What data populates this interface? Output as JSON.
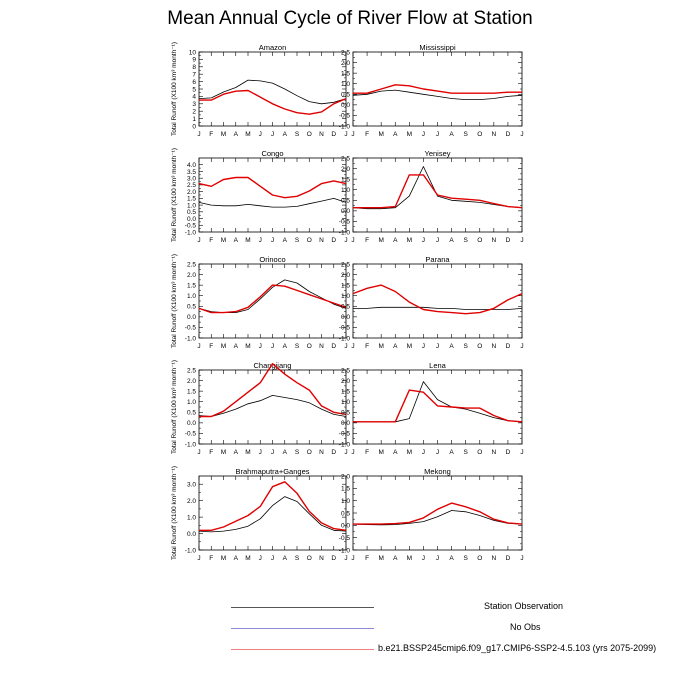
{
  "title": "Mean Annual Cycle of River Flow at Station",
  "colors": {
    "observation": "#000000",
    "no_obs": "#8c8cd9",
    "model": "#e00000",
    "observation_legend": "#555555",
    "model_legend": "#f08080"
  },
  "legend": [
    {
      "label": "Station Observation",
      "color_key": "observation_legend"
    },
    {
      "label": "No Obs",
      "color_key": "no_obs"
    },
    {
      "label": "b.e21.BSSP245cmip6.f09_g17.CMIP6-SSP2-4.5.103 (yrs 2075-2099)",
      "color_key": "model_legend"
    }
  ],
  "chart_data": [
    {
      "type": "line",
      "title": "Amazon",
      "ylabel": "Total Runoff (X100 km³ month⁻¹)",
      "ylim": [
        0,
        10
      ],
      "yticks": [
        "0",
        "1",
        "2",
        "3",
        "4",
        "5",
        "6",
        "7",
        "8",
        "9",
        "10"
      ],
      "xticks": [
        "J",
        "F",
        "M",
        "A",
        "M",
        "J",
        "J",
        "A",
        "S",
        "O",
        "N",
        "D",
        "J"
      ],
      "series": [
        {
          "name": "Station Observation",
          "values": [
            3.7,
            3.8,
            4.6,
            5.2,
            6.2,
            6.1,
            5.8,
            5.0,
            4.1,
            3.3,
            3.0,
            3.2,
            3.7
          ]
        },
        {
          "name": "Model",
          "values": [
            3.5,
            3.5,
            4.3,
            4.7,
            4.8,
            3.9,
            3.0,
            2.3,
            1.8,
            1.6,
            1.9,
            3.0,
            3.7
          ]
        }
      ]
    },
    {
      "type": "line",
      "title": "Mississippi",
      "ylabel": "",
      "ylim": [
        -1.0,
        2.5
      ],
      "yticks": [
        "-1.0",
        "-0.5",
        "0.0",
        "0.5",
        "1.0",
        "1.5",
        "2.0",
        "2.5"
      ],
      "xticks": [
        "J",
        "F",
        "M",
        "A",
        "M",
        "J",
        "J",
        "A",
        "S",
        "O",
        "N",
        "D",
        "J"
      ],
      "series": [
        {
          "name": "Station Observation",
          "values": [
            0.45,
            0.5,
            0.65,
            0.7,
            0.6,
            0.5,
            0.4,
            0.3,
            0.25,
            0.25,
            0.3,
            0.4,
            0.45
          ]
        },
        {
          "name": "Model",
          "values": [
            0.55,
            0.55,
            0.75,
            0.95,
            0.9,
            0.75,
            0.65,
            0.55,
            0.55,
            0.55,
            0.55,
            0.6,
            0.6
          ]
        }
      ]
    },
    {
      "type": "line",
      "title": "Congo",
      "ylabel": "Total Runoff (X100 km³ month⁻¹)",
      "ylim": [
        -1.0,
        4.5
      ],
      "yticks": [
        "-1.0",
        "-0.5",
        "0.0",
        "0.5",
        "1.0",
        "1.5",
        "2.0",
        "2.5",
        "3.0",
        "3.5",
        "4.0"
      ],
      "xticks": [
        "J",
        "F",
        "M",
        "A",
        "M",
        "J",
        "J",
        "A",
        "S",
        "O",
        "N",
        "D",
        "J"
      ],
      "series": [
        {
          "name": "Station Observation",
          "values": [
            1.2,
            1.0,
            0.95,
            0.95,
            1.05,
            0.95,
            0.85,
            0.85,
            0.9,
            1.1,
            1.3,
            1.5,
            1.2
          ]
        },
        {
          "name": "Model",
          "values": [
            2.6,
            2.4,
            2.9,
            3.05,
            3.05,
            2.4,
            1.75,
            1.55,
            1.65,
            2.05,
            2.6,
            2.8,
            2.6
          ]
        }
      ]
    },
    {
      "type": "line",
      "title": "Yenisey",
      "ylabel": "",
      "ylim": [
        -1.0,
        2.5
      ],
      "yticks": [
        "-1.0",
        "-0.5",
        "0.0",
        "0.5",
        "1.0",
        "1.5",
        "2.0",
        "2.5"
      ],
      "xticks": [
        "J",
        "F",
        "M",
        "A",
        "M",
        "J",
        "J",
        "A",
        "S",
        "O",
        "N",
        "D",
        "J"
      ],
      "series": [
        {
          "name": "Station Observation",
          "values": [
            0.15,
            0.1,
            0.1,
            0.15,
            0.7,
            2.1,
            0.7,
            0.5,
            0.45,
            0.4,
            0.3,
            0.2,
            0.15
          ]
        },
        {
          "name": "Model",
          "values": [
            0.15,
            0.15,
            0.15,
            0.2,
            1.7,
            1.7,
            0.75,
            0.6,
            0.55,
            0.5,
            0.35,
            0.2,
            0.15
          ]
        }
      ]
    },
    {
      "type": "line",
      "title": "Orinoco",
      "ylabel": "Total Runoff (X100 km³ month⁻¹)",
      "ylim": [
        -1.0,
        2.5
      ],
      "yticks": [
        "-1.0",
        "-0.5",
        "0.0",
        "0.5",
        "1.0",
        "1.5",
        "2.0",
        "2.5"
      ],
      "xticks": [
        "J",
        "F",
        "M",
        "A",
        "M",
        "J",
        "J",
        "A",
        "S",
        "O",
        "N",
        "D",
        "J"
      ],
      "series": [
        {
          "name": "Station Observation",
          "values": [
            0.4,
            0.25,
            0.2,
            0.2,
            0.35,
            0.85,
            1.4,
            1.75,
            1.6,
            1.2,
            0.9,
            0.6,
            0.4
          ]
        },
        {
          "name": "Model",
          "values": [
            0.4,
            0.2,
            0.2,
            0.25,
            0.45,
            0.95,
            1.5,
            1.45,
            1.25,
            1.05,
            0.85,
            0.65,
            0.45
          ]
        }
      ]
    },
    {
      "type": "line",
      "title": "Parana",
      "ylabel": "",
      "ylim": [
        -1.0,
        2.5
      ],
      "yticks": [
        "-1.0",
        "-0.5",
        "0.0",
        "0.5",
        "1.0",
        "1.5",
        "2.0",
        "2.5"
      ],
      "xticks": [
        "J",
        "F",
        "M",
        "A",
        "M",
        "J",
        "J",
        "A",
        "S",
        "O",
        "N",
        "D",
        "J"
      ],
      "series": [
        {
          "name": "Station Observation",
          "values": [
            0.4,
            0.4,
            0.45,
            0.45,
            0.45,
            0.45,
            0.4,
            0.4,
            0.35,
            0.35,
            0.35,
            0.35,
            0.4
          ]
        },
        {
          "name": "Model",
          "values": [
            1.1,
            1.35,
            1.5,
            1.2,
            0.7,
            0.35,
            0.25,
            0.2,
            0.15,
            0.2,
            0.4,
            0.8,
            1.1
          ]
        }
      ]
    },
    {
      "type": "line",
      "title": "Changjiang",
      "ylabel": "Total Runoff (X100 km³ month⁻¹)",
      "ylim": [
        -1.0,
        2.5
      ],
      "yticks": [
        "-1.0",
        "-0.5",
        "0.0",
        "0.5",
        "1.0",
        "1.5",
        "2.0",
        "2.5"
      ],
      "xticks": [
        "J",
        "F",
        "M",
        "A",
        "M",
        "J",
        "J",
        "A",
        "S",
        "O",
        "N",
        "D",
        "J"
      ],
      "series": [
        {
          "name": "Station Observation",
          "values": [
            0.35,
            0.3,
            0.45,
            0.65,
            0.9,
            1.05,
            1.3,
            1.2,
            1.1,
            0.95,
            0.65,
            0.4,
            0.3
          ]
        },
        {
          "name": "Model",
          "values": [
            0.3,
            0.3,
            0.55,
            1.0,
            1.45,
            1.9,
            2.8,
            2.3,
            1.9,
            1.55,
            0.8,
            0.5,
            0.4
          ]
        }
      ]
    },
    {
      "type": "line",
      "title": "Lena",
      "ylabel": "",
      "ylim": [
        -1.0,
        2.5
      ],
      "yticks": [
        "-1.0",
        "-0.5",
        "0.0",
        "0.5",
        "1.0",
        "1.5",
        "2.0",
        "2.5"
      ],
      "xticks": [
        "J",
        "F",
        "M",
        "A",
        "M",
        "J",
        "J",
        "A",
        "S",
        "O",
        "N",
        "D",
        "J"
      ],
      "series": [
        {
          "name": "Station Observation",
          "values": [
            0.05,
            0.05,
            0.05,
            0.05,
            0.2,
            1.95,
            1.1,
            0.75,
            0.65,
            0.45,
            0.25,
            0.1,
            0.05
          ]
        },
        {
          "name": "Model",
          "values": [
            0.05,
            0.05,
            0.05,
            0.05,
            1.55,
            1.45,
            0.8,
            0.75,
            0.7,
            0.7,
            0.35,
            0.1,
            0.05
          ]
        }
      ]
    },
    {
      "type": "line",
      "title": "Brahmaputra+Ganges",
      "ylabel": "Total Runoff (X100 km³ month⁻¹)",
      "ylim": [
        -1.0,
        3.5
      ],
      "yticks": [
        "-1.0",
        "0.0",
        "1.0",
        "2.0",
        "3.0"
      ],
      "xticks": [
        "J",
        "F",
        "M",
        "A",
        "M",
        "J",
        "J",
        "A",
        "S",
        "O",
        "N",
        "D",
        "J"
      ],
      "series": [
        {
          "name": "Station Observation",
          "values": [
            0.15,
            0.1,
            0.15,
            0.25,
            0.45,
            0.9,
            1.7,
            2.25,
            1.95,
            1.2,
            0.5,
            0.2,
            0.15
          ]
        },
        {
          "name": "Model",
          "values": [
            0.2,
            0.2,
            0.4,
            0.75,
            1.1,
            1.65,
            2.85,
            3.15,
            2.45,
            1.35,
            0.65,
            0.3,
            0.2
          ]
        }
      ]
    },
    {
      "type": "line",
      "title": "Mekong",
      "ylabel": "",
      "ylim": [
        -1.0,
        2.0
      ],
      "yticks": [
        "-1.0",
        "-0.5",
        "0.0",
        "0.5",
        "1.0",
        "1.5",
        "2.0"
      ],
      "xticks": [
        "J",
        "F",
        "M",
        "A",
        "M",
        "J",
        "J",
        "A",
        "S",
        "O",
        "N",
        "D",
        "J"
      ],
      "series": [
        {
          "name": "Station Observation",
          "values": [
            0.05,
            0.03,
            0.02,
            0.03,
            0.08,
            0.15,
            0.35,
            0.6,
            0.55,
            0.4,
            0.2,
            0.08,
            0.05
          ]
        },
        {
          "name": "Model",
          "values": [
            0.05,
            0.05,
            0.05,
            0.07,
            0.12,
            0.3,
            0.65,
            0.9,
            0.75,
            0.55,
            0.25,
            0.1,
            0.05
          ]
        }
      ]
    }
  ]
}
